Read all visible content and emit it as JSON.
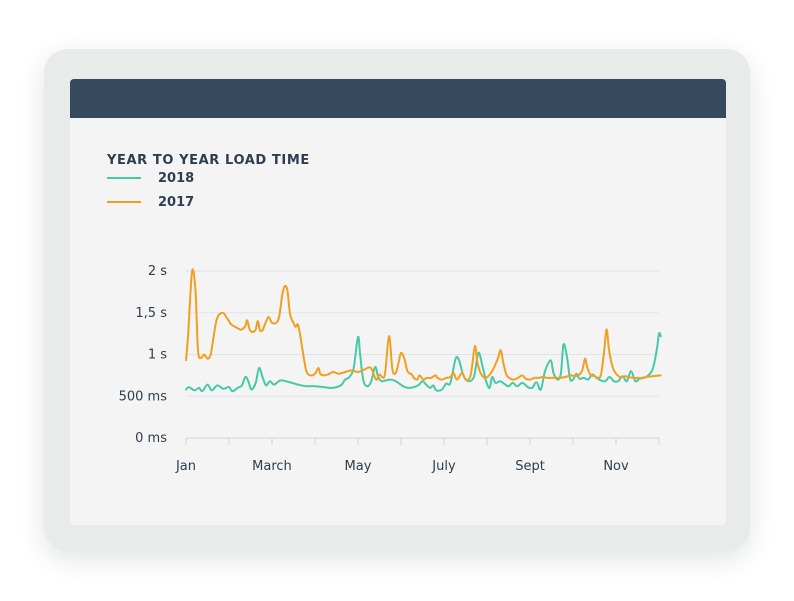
{
  "chart_data": {
    "type": "line",
    "title": "YEAR TO YEAR LOAD TIME",
    "xlabel": "",
    "ylabel": "",
    "ylim": [
      0,
      2
    ],
    "y_ticks": [
      {
        "value": 0,
        "label": "0 ms"
      },
      {
        "value": 0.5,
        "label": "500 ms"
      },
      {
        "value": 1,
        "label": "1 s"
      },
      {
        "value": 1.5,
        "label": "1,5 s"
      },
      {
        "value": 2,
        "label": "2 s"
      }
    ],
    "x_range": [
      0,
      11
    ],
    "x_ticks": [
      {
        "value": 0,
        "label": "Jan"
      },
      {
        "value": 2,
        "label": "March"
      },
      {
        "value": 4,
        "label": "May"
      },
      {
        "value": 6,
        "label": "July"
      },
      {
        "value": 8,
        "label": "Sept"
      },
      {
        "value": 10,
        "label": "Nov"
      }
    ],
    "minor_ticks": [
      0,
      1,
      2,
      3,
      4,
      5,
      6,
      7,
      8,
      9,
      10,
      11
    ],
    "grid": true,
    "legend_position": "top-left",
    "series": [
      {
        "name": "2018",
        "color": "#45c9a9",
        "points": [
          [
            0,
            0.58
          ],
          [
            0.07,
            0.61
          ],
          [
            0.2,
            0.57
          ],
          [
            0.3,
            0.6
          ],
          [
            0.38,
            0.56
          ],
          [
            0.5,
            0.64
          ],
          [
            0.6,
            0.57
          ],
          [
            0.73,
            0.63
          ],
          [
            0.87,
            0.59
          ],
          [
            1.0,
            0.61
          ],
          [
            1.08,
            0.56
          ],
          [
            1.2,
            0.6
          ],
          [
            1.3,
            0.63
          ],
          [
            1.38,
            0.73
          ],
          [
            1.45,
            0.68
          ],
          [
            1.52,
            0.58
          ],
          [
            1.62,
            0.66
          ],
          [
            1.7,
            0.84
          ],
          [
            1.78,
            0.73
          ],
          [
            1.86,
            0.63
          ],
          [
            1.95,
            0.68
          ],
          [
            2.05,
            0.64
          ],
          [
            2.2,
            0.69
          ],
          [
            2.4,
            0.67
          ],
          [
            2.6,
            0.64
          ],
          [
            2.8,
            0.62
          ],
          [
            3.0,
            0.62
          ],
          [
            3.2,
            0.61
          ],
          [
            3.4,
            0.6
          ],
          [
            3.6,
            0.63
          ],
          [
            3.7,
            0.7
          ],
          [
            3.8,
            0.73
          ],
          [
            3.9,
            0.84
          ],
          [
            4.0,
            1.21
          ],
          [
            4.05,
            1.0
          ],
          [
            4.12,
            0.7
          ],
          [
            4.2,
            0.62
          ],
          [
            4.3,
            0.67
          ],
          [
            4.4,
            0.85
          ],
          [
            4.47,
            0.73
          ],
          [
            4.55,
            0.68
          ],
          [
            4.65,
            0.69
          ],
          [
            4.75,
            0.7
          ],
          [
            4.88,
            0.68
          ],
          [
            5.05,
            0.62
          ],
          [
            5.2,
            0.6
          ],
          [
            5.4,
            0.63
          ],
          [
            5.5,
            0.68
          ],
          [
            5.6,
            0.63
          ],
          [
            5.68,
            0.6
          ],
          [
            5.75,
            0.63
          ],
          [
            5.82,
            0.57
          ],
          [
            5.95,
            0.58
          ],
          [
            6.05,
            0.65
          ],
          [
            6.15,
            0.66
          ],
          [
            6.27,
            0.95
          ],
          [
            6.35,
            0.93
          ],
          [
            6.45,
            0.75
          ],
          [
            6.58,
            0.68
          ],
          [
            6.7,
            0.74
          ],
          [
            6.8,
            1.02
          ],
          [
            6.9,
            0.85
          ],
          [
            6.98,
            0.68
          ],
          [
            7.06,
            0.6
          ],
          [
            7.12,
            0.73
          ],
          [
            7.2,
            0.66
          ],
          [
            7.3,
            0.68
          ],
          [
            7.4,
            0.65
          ],
          [
            7.5,
            0.62
          ],
          [
            7.6,
            0.66
          ],
          [
            7.7,
            0.62
          ],
          [
            7.82,
            0.66
          ],
          [
            7.95,
            0.61
          ],
          [
            8.05,
            0.6
          ],
          [
            8.15,
            0.67
          ],
          [
            8.25,
            0.58
          ],
          [
            8.35,
            0.8
          ],
          [
            8.48,
            0.93
          ],
          [
            8.55,
            0.77
          ],
          [
            8.65,
            0.7
          ],
          [
            8.72,
            0.78
          ],
          [
            8.78,
            1.12
          ],
          [
            8.86,
            0.97
          ],
          [
            8.93,
            0.71
          ],
          [
            9.0,
            0.7
          ],
          [
            9.08,
            0.77
          ],
          [
            9.15,
            0.71
          ],
          [
            9.25,
            0.72
          ],
          [
            9.35,
            0.7
          ],
          [
            9.45,
            0.76
          ],
          [
            9.55,
            0.72
          ],
          [
            9.65,
            0.69
          ],
          [
            9.75,
            0.68
          ],
          [
            9.85,
            0.73
          ],
          [
            9.95,
            0.68
          ],
          [
            10.05,
            0.68
          ],
          [
            10.15,
            0.74
          ],
          [
            10.25,
            0.68
          ],
          [
            10.35,
            0.8
          ],
          [
            10.45,
            0.68
          ],
          [
            10.55,
            0.71
          ],
          [
            10.7,
            0.73
          ],
          [
            10.85,
            0.82
          ],
          [
            10.95,
            1.06
          ],
          [
            11.0,
            1.25
          ],
          [
            11.04,
            1.22
          ]
        ]
      },
      {
        "name": "2017",
        "color": "#f0a01e",
        "points": [
          [
            0,
            0.93
          ],
          [
            0.05,
            1.24
          ],
          [
            0.1,
            1.7
          ],
          [
            0.15,
            2.02
          ],
          [
            0.22,
            1.77
          ],
          [
            0.28,
            1.05
          ],
          [
            0.35,
            0.96
          ],
          [
            0.42,
            1.0
          ],
          [
            0.5,
            0.95
          ],
          [
            0.57,
            0.99
          ],
          [
            0.62,
            1.14
          ],
          [
            0.72,
            1.43
          ],
          [
            0.85,
            1.5
          ],
          [
            0.95,
            1.44
          ],
          [
            1.05,
            1.36
          ],
          [
            1.15,
            1.33
          ],
          [
            1.25,
            1.3
          ],
          [
            1.3,
            1.3
          ],
          [
            1.38,
            1.34
          ],
          [
            1.42,
            1.41
          ],
          [
            1.48,
            1.3
          ],
          [
            1.55,
            1.27
          ],
          [
            1.62,
            1.3
          ],
          [
            1.67,
            1.4
          ],
          [
            1.72,
            1.29
          ],
          [
            1.78,
            1.29
          ],
          [
            1.85,
            1.38
          ],
          [
            1.92,
            1.45
          ],
          [
            2.0,
            1.38
          ],
          [
            2.1,
            1.38
          ],
          [
            2.17,
            1.46
          ],
          [
            2.24,
            1.72
          ],
          [
            2.3,
            1.82
          ],
          [
            2.36,
            1.76
          ],
          [
            2.42,
            1.48
          ],
          [
            2.5,
            1.38
          ],
          [
            2.55,
            1.33
          ],
          [
            2.6,
            1.36
          ],
          [
            2.65,
            1.25
          ],
          [
            2.72,
            1.02
          ],
          [
            2.8,
            0.8
          ],
          [
            2.9,
            0.75
          ],
          [
            3.0,
            0.77
          ],
          [
            3.08,
            0.84
          ],
          [
            3.12,
            0.77
          ],
          [
            3.2,
            0.75
          ],
          [
            3.3,
            0.76
          ],
          [
            3.42,
            0.79
          ],
          [
            3.55,
            0.77
          ],
          [
            3.7,
            0.79
          ],
          [
            3.85,
            0.81
          ],
          [
            4.0,
            0.79
          ],
          [
            4.15,
            0.82
          ],
          [
            4.3,
            0.84
          ],
          [
            4.42,
            0.7
          ],
          [
            4.5,
            0.76
          ],
          [
            4.62,
            0.75
          ],
          [
            4.72,
            1.22
          ],
          [
            4.8,
            0.82
          ],
          [
            4.88,
            0.78
          ],
          [
            4.95,
            0.92
          ],
          [
            5.0,
            1.02
          ],
          [
            5.08,
            0.95
          ],
          [
            5.15,
            0.8
          ],
          [
            5.25,
            0.76
          ],
          [
            5.3,
            0.72
          ],
          [
            5.38,
            0.7
          ],
          [
            5.43,
            0.75
          ],
          [
            5.52,
            0.7
          ],
          [
            5.6,
            0.72
          ],
          [
            5.7,
            0.72
          ],
          [
            5.8,
            0.75
          ],
          [
            5.85,
            0.72
          ],
          [
            5.95,
            0.7
          ],
          [
            6.05,
            0.72
          ],
          [
            6.15,
            0.73
          ],
          [
            6.22,
            0.78
          ],
          [
            6.3,
            0.7
          ],
          [
            6.42,
            0.78
          ],
          [
            6.5,
            0.7
          ],
          [
            6.6,
            0.72
          ],
          [
            6.65,
            0.85
          ],
          [
            6.72,
            1.1
          ],
          [
            6.78,
            0.9
          ],
          [
            6.85,
            0.78
          ],
          [
            6.95,
            0.72
          ],
          [
            7.05,
            0.75
          ],
          [
            7.15,
            0.83
          ],
          [
            7.25,
            0.95
          ],
          [
            7.32,
            1.05
          ],
          [
            7.38,
            0.9
          ],
          [
            7.45,
            0.76
          ],
          [
            7.52,
            0.72
          ],
          [
            7.62,
            0.7
          ],
          [
            7.72,
            0.72
          ],
          [
            7.82,
            0.75
          ],
          [
            7.9,
            0.71
          ],
          [
            8.0,
            0.7
          ],
          [
            8.1,
            0.72
          ],
          [
            8.2,
            0.72
          ],
          [
            8.3,
            0.73
          ],
          [
            8.4,
            0.72
          ],
          [
            8.5,
            0.72
          ],
          [
            8.6,
            0.72
          ],
          [
            8.7,
            0.72
          ],
          [
            8.82,
            0.73
          ],
          [
            8.95,
            0.75
          ],
          [
            9.05,
            0.74
          ],
          [
            9.15,
            0.76
          ],
          [
            9.22,
            0.82
          ],
          [
            9.28,
            0.95
          ],
          [
            9.33,
            0.85
          ],
          [
            9.4,
            0.76
          ],
          [
            9.5,
            0.74
          ],
          [
            9.58,
            0.72
          ],
          [
            9.65,
            0.76
          ],
          [
            9.72,
            1.02
          ],
          [
            9.78,
            1.3
          ],
          [
            9.84,
            1.05
          ],
          [
            9.92,
            0.85
          ],
          [
            10.0,
            0.77
          ],
          [
            10.1,
            0.73
          ],
          [
            10.2,
            0.74
          ],
          [
            10.3,
            0.73
          ],
          [
            10.4,
            0.72
          ],
          [
            10.5,
            0.72
          ],
          [
            10.6,
            0.72
          ],
          [
            10.7,
            0.73
          ],
          [
            10.85,
            0.74
          ],
          [
            11.04,
            0.75
          ]
        ]
      }
    ]
  }
}
